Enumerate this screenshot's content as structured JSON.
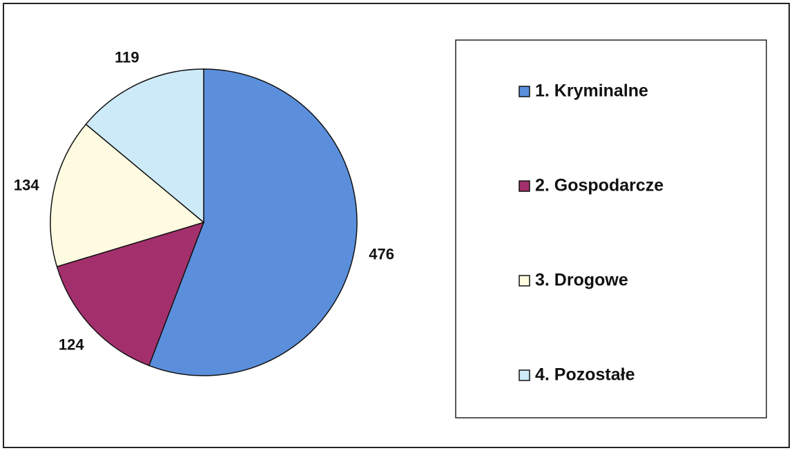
{
  "chart_data": {
    "type": "pie",
    "categories": [
      "1. Kryminalne",
      "2. Gospodarcze",
      "3. Drogowe",
      "4. Pozostałe"
    ],
    "values": [
      476,
      124,
      134,
      119
    ],
    "colors": [
      "#5b8fdc",
      "#a3306c",
      "#fffbe1",
      "#cdeaf9"
    ],
    "legend": "right"
  }
}
